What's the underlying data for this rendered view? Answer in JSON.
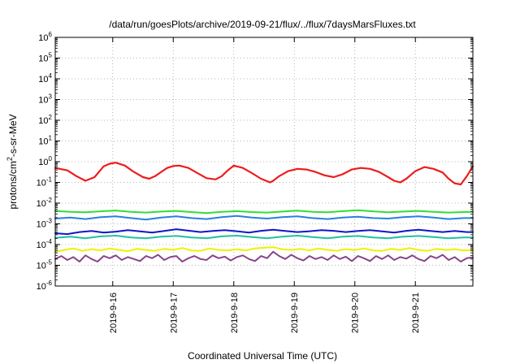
{
  "chart_data": {
    "type": "line",
    "title": "/data/run/goesPlots/archive/2019-09-21/flux/../flux/7daysMarsFluxes.txt",
    "xlabel": "Coordinated Universal Time (UTC)",
    "ylabel": {
      "prefix": "protons/cm",
      "sup": "2",
      "suffix": "-s-sr-MeV"
    },
    "x_unit": "day of Sept 2019",
    "xlim": [
      15.05,
      21.95
    ],
    "ylog": true,
    "ylim_exponent": [
      -6,
      6
    ],
    "y_ticks": [
      {
        "mantissa": "10",
        "exp": "6"
      },
      {
        "mantissa": "10",
        "exp": "5"
      },
      {
        "mantissa": "10",
        "exp": "4"
      },
      {
        "mantissa": "10",
        "exp": "3"
      },
      {
        "mantissa": "10",
        "exp": "2"
      },
      {
        "mantissa": "10",
        "exp": "1"
      },
      {
        "mantissa": "10",
        "exp": "0"
      },
      {
        "mantissa": "10",
        "exp": "-1"
      },
      {
        "mantissa": "10",
        "exp": "-2"
      },
      {
        "mantissa": "10",
        "exp": "-3"
      },
      {
        "mantissa": "10",
        "exp": "-4"
      },
      {
        "mantissa": "10",
        "exp": "-5"
      },
      {
        "mantissa": "10",
        "exp": "-6"
      }
    ],
    "x_ticks": [
      {
        "value": 16,
        "label": "2019-9-16"
      },
      {
        "value": 17,
        "label": "2019-9-17"
      },
      {
        "value": 18,
        "label": "2019-9-18"
      },
      {
        "value": 19,
        "label": "2019-9-19"
      },
      {
        "value": 20,
        "label": "2019-9-20"
      },
      {
        "value": 21,
        "label": "2019-9-21"
      }
    ],
    "grid": true,
    "legend": "none",
    "series": [
      {
        "color": "#ee1c1c",
        "width": 2.2,
        "x": [
          15.05,
          15.25,
          15.4,
          15.55,
          15.7,
          15.85,
          15.95,
          16.05,
          16.2,
          16.35,
          16.5,
          16.6,
          16.7,
          16.8,
          16.9,
          17.0,
          17.1,
          17.25,
          17.4,
          17.55,
          17.7,
          17.8,
          17.9,
          18.0,
          18.15,
          18.3,
          18.45,
          18.6,
          18.65,
          18.75,
          18.9,
          19.05,
          19.2,
          19.35,
          19.5,
          19.65,
          19.8,
          19.95,
          20.1,
          20.25,
          20.4,
          20.55,
          20.65,
          20.75,
          20.85,
          21.0,
          21.15,
          21.3,
          21.45,
          21.55,
          21.65,
          21.75,
          21.85,
          21.95
        ],
        "y": [
          0.5,
          0.38,
          0.2,
          0.12,
          0.18,
          0.6,
          0.8,
          0.9,
          0.65,
          0.32,
          0.18,
          0.15,
          0.2,
          0.32,
          0.5,
          0.62,
          0.65,
          0.5,
          0.28,
          0.16,
          0.14,
          0.2,
          0.38,
          0.65,
          0.5,
          0.28,
          0.15,
          0.1,
          0.12,
          0.2,
          0.35,
          0.45,
          0.42,
          0.32,
          0.22,
          0.18,
          0.25,
          0.42,
          0.5,
          0.45,
          0.32,
          0.18,
          0.12,
          0.1,
          0.15,
          0.35,
          0.55,
          0.45,
          0.3,
          0.15,
          0.09,
          0.08,
          0.2,
          0.6
        ]
      },
      {
        "color": "#33dd33",
        "width": 2,
        "x": [
          15.05,
          15.3,
          15.55,
          15.8,
          16.05,
          16.3,
          16.55,
          16.8,
          17.05,
          17.3,
          17.55,
          17.8,
          18.05,
          18.3,
          18.55,
          18.8,
          19.05,
          19.3,
          19.55,
          19.8,
          20.05,
          20.3,
          20.55,
          20.8,
          21.05,
          21.3,
          21.55,
          21.8,
          21.95
        ],
        "y": [
          0.0042,
          0.0038,
          0.0036,
          0.004,
          0.0044,
          0.0038,
          0.0035,
          0.0039,
          0.0042,
          0.0037,
          0.0033,
          0.0038,
          0.0041,
          0.0037,
          0.0035,
          0.0039,
          0.0043,
          0.0038,
          0.0036,
          0.0041,
          0.0045,
          0.004,
          0.0036,
          0.0039,
          0.0042,
          0.0038,
          0.0035,
          0.0037,
          0.0038
        ]
      },
      {
        "color": "#2a7fdf",
        "width": 2,
        "x": [
          15.05,
          15.3,
          15.55,
          15.8,
          16.05,
          16.3,
          16.55,
          16.8,
          17.05,
          17.3,
          17.55,
          17.8,
          18.05,
          18.3,
          18.55,
          18.8,
          19.05,
          19.3,
          19.55,
          19.8,
          20.05,
          20.3,
          20.55,
          20.8,
          21.05,
          21.3,
          21.55,
          21.8,
          21.95
        ],
        "y": [
          0.0018,
          0.002,
          0.0017,
          0.0021,
          0.0023,
          0.0019,
          0.0016,
          0.002,
          0.0023,
          0.0019,
          0.0017,
          0.0021,
          0.0024,
          0.002,
          0.0018,
          0.0021,
          0.0023,
          0.0019,
          0.0017,
          0.002,
          0.0022,
          0.0019,
          0.0018,
          0.0021,
          0.0023,
          0.002,
          0.0017,
          0.0019,
          0.0019
        ]
      },
      {
        "color": "#1414c8",
        "width": 2,
        "x": [
          15.05,
          15.25,
          15.45,
          15.65,
          15.85,
          16.05,
          16.25,
          16.45,
          16.65,
          16.85,
          17.05,
          17.25,
          17.45,
          17.65,
          17.85,
          18.05,
          18.25,
          18.45,
          18.65,
          18.85,
          19.05,
          19.25,
          19.45,
          19.65,
          19.85,
          20.05,
          20.25,
          20.45,
          20.65,
          20.85,
          21.05,
          21.25,
          21.45,
          21.65,
          21.85,
          21.95
        ],
        "y": [
          0.00035,
          0.00032,
          0.0004,
          0.00045,
          0.00038,
          0.00042,
          0.0005,
          0.00043,
          0.00038,
          0.00045,
          0.00055,
          0.00047,
          0.0004,
          0.00045,
          0.0005,
          0.00044,
          0.00038,
          0.00046,
          0.00052,
          0.00045,
          0.0004,
          0.00044,
          0.0005,
          0.00046,
          0.0004,
          0.00045,
          0.0005,
          0.00043,
          0.00038,
          0.00046,
          0.00052,
          0.00045,
          0.0004,
          0.00045,
          0.0004,
          0.0004
        ]
      },
      {
        "color": "#20c0a0",
        "width": 2,
        "x": [
          15.05,
          15.3,
          15.55,
          15.8,
          16.05,
          16.3,
          16.55,
          16.8,
          17.05,
          17.3,
          17.55,
          17.8,
          18.05,
          18.3,
          18.55,
          18.8,
          19.05,
          19.3,
          19.55,
          19.8,
          20.05,
          20.3,
          20.55,
          20.8,
          21.05,
          21.3,
          21.55,
          21.8,
          21.95
        ],
        "y": [
          0.00021,
          0.00024,
          0.0002,
          0.00025,
          0.00027,
          0.00022,
          0.0002,
          0.00024,
          0.00026,
          0.00022,
          0.0002,
          0.00025,
          0.00027,
          0.00023,
          0.0002,
          0.00024,
          0.00027,
          0.00023,
          0.0002,
          0.00024,
          0.00026,
          0.00022,
          0.0002,
          0.00024,
          0.00026,
          0.00023,
          0.0002,
          0.00022,
          0.00022
        ]
      },
      {
        "color": "#f0f000",
        "width": 2,
        "x": [
          15.05,
          15.2,
          15.35,
          15.5,
          15.65,
          15.8,
          15.95,
          16.1,
          16.25,
          16.4,
          16.55,
          16.7,
          16.85,
          17.0,
          17.15,
          17.3,
          17.45,
          17.6,
          17.75,
          17.9,
          18.05,
          18.2,
          18.35,
          18.5,
          18.65,
          18.8,
          18.95,
          19.1,
          19.25,
          19.4,
          19.55,
          19.7,
          19.85,
          20.0,
          20.15,
          20.3,
          20.45,
          20.6,
          20.75,
          20.9,
          21.05,
          21.2,
          21.35,
          21.5,
          21.65,
          21.8,
          21.95
        ],
        "y": [
          4.5e-05,
          5.5e-05,
          6.5e-05,
          5e-05,
          6e-05,
          5.2e-05,
          6.5e-05,
          5.5e-05,
          4.8e-05,
          6.2e-05,
          5.5e-05,
          5e-05,
          6.2e-05,
          5.5e-05,
          6.8e-05,
          5.2e-05,
          5e-05,
          6.5e-05,
          5.5e-05,
          5.2e-05,
          6e-05,
          5.2e-05,
          6.5e-05,
          7e-05,
          7.5e-05,
          6e-05,
          5.5e-05,
          6.2e-05,
          5.2e-05,
          6.5e-05,
          5.5e-05,
          5e-05,
          6e-05,
          5.5e-05,
          6.5e-05,
          5.2e-05,
          5e-05,
          6.2e-05,
          5.5e-05,
          6.8e-05,
          5.5e-05,
          5e-05,
          6.2e-05,
          5.5e-05,
          6e-05,
          5.2e-05,
          5.5e-05
        ]
      },
      {
        "color": "#884488",
        "width": 2,
        "x": [
          15.05,
          15.15,
          15.25,
          15.35,
          15.45,
          15.55,
          15.65,
          15.75,
          15.85,
          15.95,
          16.05,
          16.15,
          16.25,
          16.35,
          16.45,
          16.55,
          16.65,
          16.75,
          16.85,
          16.95,
          17.05,
          17.15,
          17.25,
          17.35,
          17.45,
          17.55,
          17.65,
          17.75,
          17.85,
          17.95,
          18.05,
          18.15,
          18.25,
          18.35,
          18.45,
          18.55,
          18.65,
          18.75,
          18.85,
          18.95,
          19.05,
          19.15,
          19.25,
          19.35,
          19.45,
          19.55,
          19.65,
          19.75,
          19.85,
          19.95,
          20.05,
          20.15,
          20.25,
          20.35,
          20.45,
          20.55,
          20.65,
          20.75,
          20.85,
          20.95,
          21.05,
          21.15,
          21.25,
          21.35,
          21.45,
          21.55,
          21.65,
          21.75,
          21.85,
          21.95
        ],
        "y": [
          2e-05,
          2.8e-05,
          1.8e-05,
          2.5e-05,
          1.5e-05,
          3e-05,
          2e-05,
          1.5e-05,
          2.8e-05,
          2.2e-05,
          3e-05,
          1.8e-05,
          2.5e-05,
          2e-05,
          1.6e-05,
          2.8e-05,
          2.2e-05,
          3.2e-05,
          1.8e-05,
          2.5e-05,
          2.8e-05,
          1.5e-05,
          2.2e-05,
          2.8e-05,
          2e-05,
          1.8e-05,
          3e-05,
          2.2e-05,
          2.6e-05,
          1.7e-05,
          2.5e-05,
          3e-05,
          2e-05,
          1.6e-05,
          2.8e-05,
          2.2e-05,
          4.5e-05,
          2.8e-05,
          2e-05,
          3.2e-05,
          2.2e-05,
          1.7e-05,
          2.8e-05,
          2e-05,
          2.5e-05,
          1.8e-05,
          3e-05,
          2e-05,
          2.6e-05,
          1.6e-05,
          2.8e-05,
          2.2e-05,
          1.6e-05,
          2.8e-05,
          2e-05,
          3e-05,
          1.8e-05,
          2.5e-05,
          2.1e-05,
          3e-05,
          2e-05,
          1.6e-05,
          2.8e-05,
          2.2e-05,
          3.2e-05,
          1.8e-05,
          2.5e-05,
          1.5e-05,
          2.2e-05,
          2.4e-05
        ]
      }
    ]
  }
}
